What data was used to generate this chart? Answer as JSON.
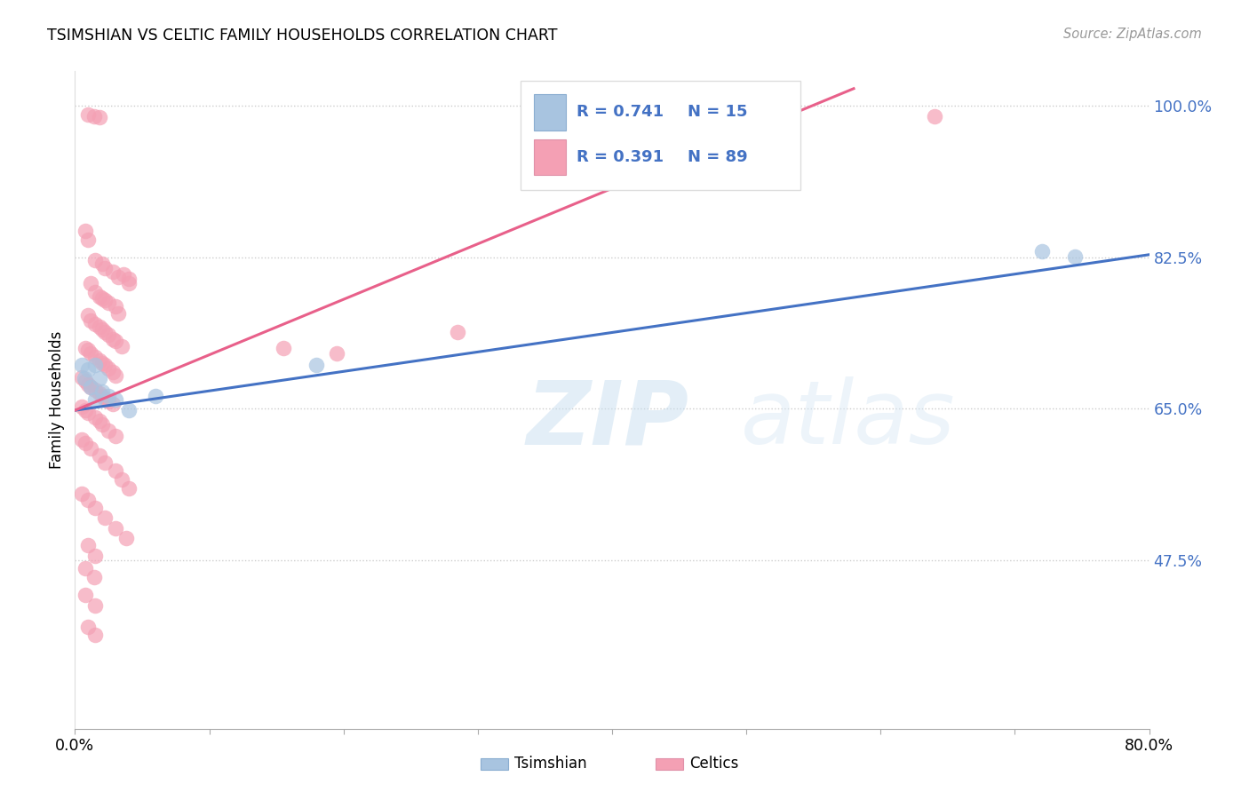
{
  "title": "TSIMSHIAN VS CELTIC FAMILY HOUSEHOLDS CORRELATION CHART",
  "source": "Source: ZipAtlas.com",
  "ylabel": "Family Households",
  "xmin": 0.0,
  "xmax": 0.8,
  "ymin": 0.28,
  "ymax": 1.04,
  "yticks": [
    0.475,
    0.65,
    0.825,
    1.0
  ],
  "ytick_labels": [
    "47.5%",
    "65.0%",
    "82.5%",
    "100.0%"
  ],
  "xticks": [
    0.0,
    0.1,
    0.2,
    0.3,
    0.4,
    0.5,
    0.6,
    0.7,
    0.8
  ],
  "xtick_labels": [
    "0.0%",
    "",
    "",
    "",
    "",
    "",
    "",
    "",
    "80.0%"
  ],
  "tsimshian_color": "#a8c4e0",
  "celtics_color": "#f4a0b4",
  "tsimshian_line_color": "#4472c4",
  "celtics_line_color": "#e8608a",
  "tsimshian_line": [
    [
      0.0,
      0.648
    ],
    [
      0.8,
      0.828
    ]
  ],
  "celtics_line": [
    [
      0.0,
      0.648
    ],
    [
      0.58,
      1.02
    ]
  ],
  "tsimshian_points": [
    [
      0.005,
      0.7
    ],
    [
      0.007,
      0.685
    ],
    [
      0.01,
      0.695
    ],
    [
      0.012,
      0.675
    ],
    [
      0.015,
      0.7
    ],
    [
      0.015,
      0.66
    ],
    [
      0.018,
      0.685
    ],
    [
      0.02,
      0.67
    ],
    [
      0.025,
      0.665
    ],
    [
      0.03,
      0.66
    ],
    [
      0.04,
      0.648
    ],
    [
      0.06,
      0.665
    ],
    [
      0.18,
      0.7
    ],
    [
      0.72,
      0.832
    ],
    [
      0.745,
      0.826
    ]
  ],
  "celtics_points": [
    [
      0.01,
      0.99
    ],
    [
      0.014,
      0.988
    ],
    [
      0.018,
      0.987
    ],
    [
      0.008,
      0.855
    ],
    [
      0.01,
      0.845
    ],
    [
      0.015,
      0.822
    ],
    [
      0.02,
      0.818
    ],
    [
      0.022,
      0.812
    ],
    [
      0.028,
      0.808
    ],
    [
      0.032,
      0.802
    ],
    [
      0.036,
      0.805
    ],
    [
      0.04,
      0.8
    ],
    [
      0.04,
      0.795
    ],
    [
      0.012,
      0.795
    ],
    [
      0.015,
      0.785
    ],
    [
      0.018,
      0.78
    ],
    [
      0.02,
      0.778
    ],
    [
      0.022,
      0.775
    ],
    [
      0.025,
      0.772
    ],
    [
      0.03,
      0.768
    ],
    [
      0.032,
      0.76
    ],
    [
      0.01,
      0.758
    ],
    [
      0.012,
      0.752
    ],
    [
      0.015,
      0.748
    ],
    [
      0.018,
      0.745
    ],
    [
      0.02,
      0.742
    ],
    [
      0.022,
      0.738
    ],
    [
      0.025,
      0.735
    ],
    [
      0.028,
      0.73
    ],
    [
      0.03,
      0.728
    ],
    [
      0.035,
      0.722
    ],
    [
      0.008,
      0.72
    ],
    [
      0.01,
      0.718
    ],
    [
      0.012,
      0.714
    ],
    [
      0.015,
      0.71
    ],
    [
      0.018,
      0.706
    ],
    [
      0.02,
      0.703
    ],
    [
      0.022,
      0.7
    ],
    [
      0.025,
      0.696
    ],
    [
      0.028,
      0.692
    ],
    [
      0.03,
      0.688
    ],
    [
      0.005,
      0.686
    ],
    [
      0.008,
      0.682
    ],
    [
      0.01,
      0.678
    ],
    [
      0.012,
      0.675
    ],
    [
      0.015,
      0.672
    ],
    [
      0.018,
      0.668
    ],
    [
      0.02,
      0.665
    ],
    [
      0.022,
      0.662
    ],
    [
      0.025,
      0.658
    ],
    [
      0.028,
      0.655
    ],
    [
      0.005,
      0.652
    ],
    [
      0.008,
      0.648
    ],
    [
      0.01,
      0.645
    ],
    [
      0.015,
      0.64
    ],
    [
      0.018,
      0.636
    ],
    [
      0.02,
      0.632
    ],
    [
      0.025,
      0.625
    ],
    [
      0.03,
      0.618
    ],
    [
      0.005,
      0.614
    ],
    [
      0.008,
      0.61
    ],
    [
      0.012,
      0.604
    ],
    [
      0.018,
      0.596
    ],
    [
      0.022,
      0.588
    ],
    [
      0.03,
      0.578
    ],
    [
      0.035,
      0.568
    ],
    [
      0.04,
      0.558
    ],
    [
      0.005,
      0.552
    ],
    [
      0.01,
      0.544
    ],
    [
      0.015,
      0.535
    ],
    [
      0.022,
      0.524
    ],
    [
      0.03,
      0.512
    ],
    [
      0.038,
      0.5
    ],
    [
      0.01,
      0.492
    ],
    [
      0.015,
      0.48
    ],
    [
      0.008,
      0.465
    ],
    [
      0.014,
      0.455
    ],
    [
      0.008,
      0.435
    ],
    [
      0.015,
      0.422
    ],
    [
      0.01,
      0.398
    ],
    [
      0.015,
      0.388
    ],
    [
      0.155,
      0.72
    ],
    [
      0.195,
      0.714
    ],
    [
      0.285,
      0.738
    ],
    [
      0.64,
      0.988
    ]
  ]
}
